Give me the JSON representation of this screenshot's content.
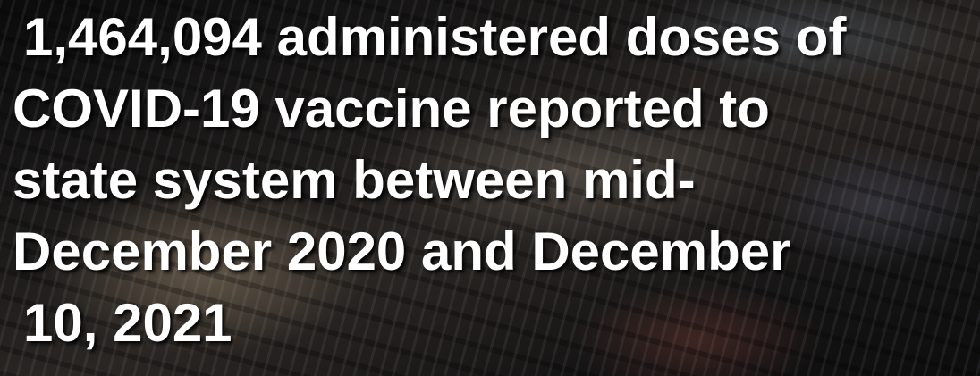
{
  "headline": {
    "lines": [
      "1,464,094 administered doses of",
      "COVID-19 vaccine reported to",
      "state system between mid-",
      "December 2020 and December",
      "10, 2021"
    ]
  }
}
